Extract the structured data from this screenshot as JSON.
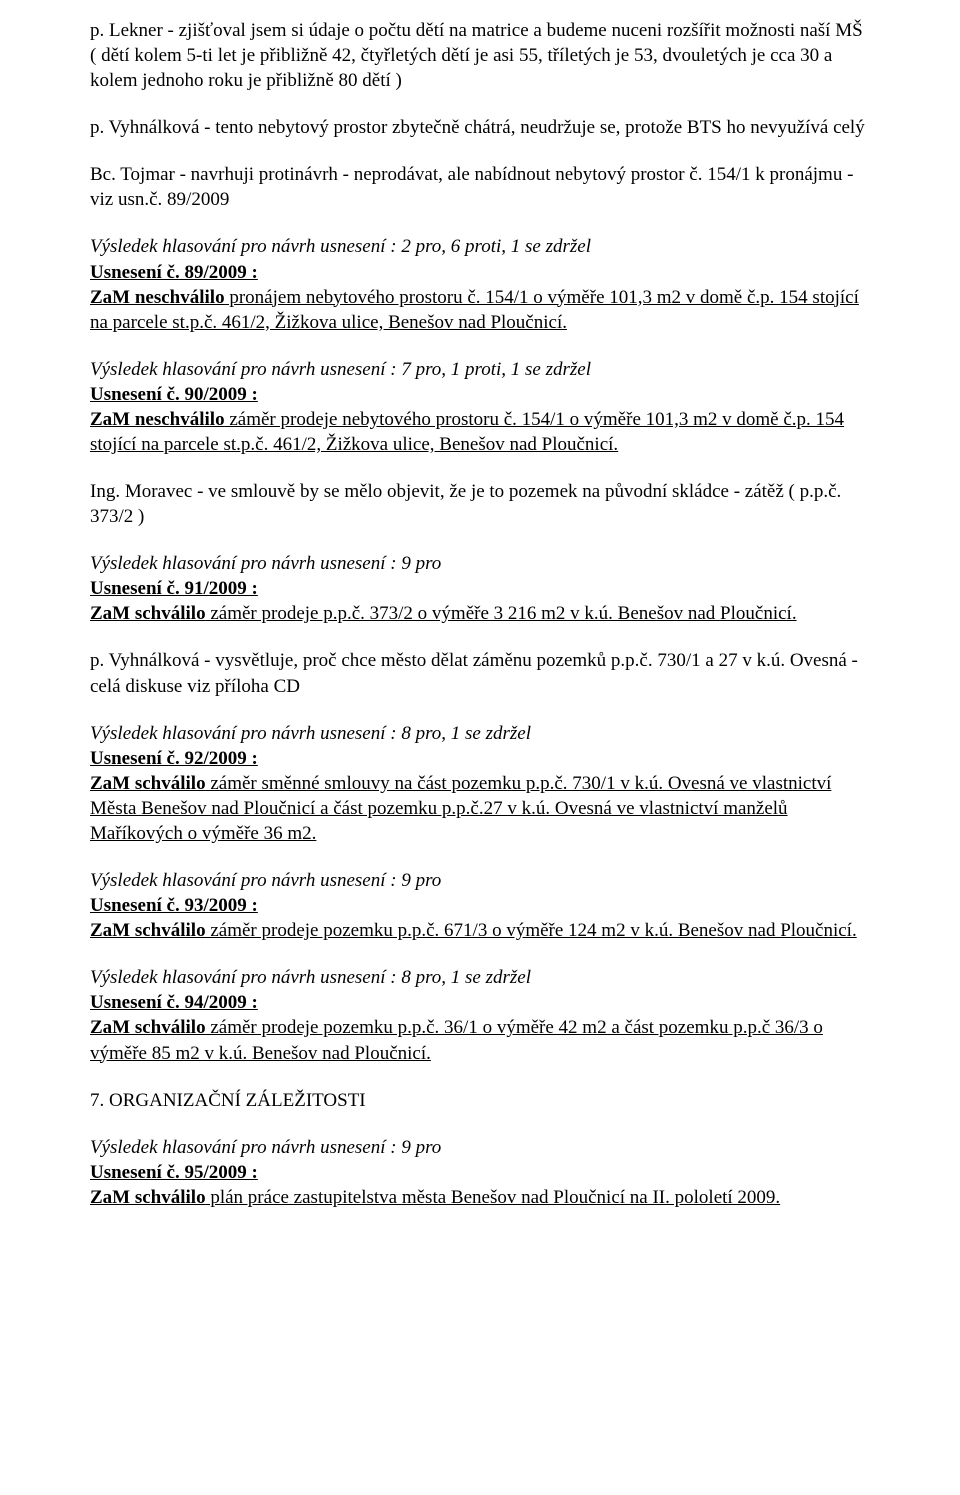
{
  "p1": "p. Lekner - zjišťoval jsem si údaje o počtu dětí na matrice a budeme nuceni rozšířit možnosti naší MŠ ( dětí kolem 5-ti let je přibližně 42, čtyřletých dětí je asi 55, tříletých je 53, dvouletých je cca 30 a kolem jednoho roku je přibližně 80 dětí )",
  "p2": "p. Vyhnálková - tento nebytový prostor zbytečně chátrá, neudržuje se, protože BTS ho nevyužívá celý",
  "p3": "Bc. Tojmar - navrhuji protinávrh - neprodávat, ale nabídnout nebytový prostor č. 154/1 k pronájmu - viz usn.č. 89/2009",
  "r89": {
    "vote": "Výsledek hlasování pro návrh usnesení : 2 pro, 6 proti, 1 se zdržel",
    "heading": "Usnesení č. 89/2009 :",
    "lead": "ZaM neschválilo",
    "rest": " pronájem nebytového prostoru č. 154/1 o výměře 101,3 m2 v domě č.p. 154 stojící na parcele st.p.č. 461/2, Žižkova ulice, Benešov nad Ploučnicí."
  },
  "r90": {
    "vote": "Výsledek hlasování pro návrh usnesení : 7 pro, 1 proti, 1 se zdržel",
    "heading": "Usnesení č. 90/2009 :",
    "lead": "ZaM neschválilo",
    "rest1": " záměr prodeje nebytového prostoru č. 154/1 o výměře 101,3 m2 v domě č.p. 154 stojící na parcele st.p.č. 461/2, Žižkova ulice, Benešov nad Ploučnicí."
  },
  "p4": "Ing. Moravec - ve smlouvě by se mělo objevit, že je to pozemek na původní skládce - zátěž ( p.p.č. 373/2 )",
  "r91": {
    "vote": "Výsledek hlasování pro návrh usnesení : 9 pro",
    "heading": "Usnesení č. 91/2009 :",
    "lead": "ZaM schválilo",
    "rest": " záměr prodeje p.p.č. 373/2 o výměře 3 216 m2 v k.ú. Benešov nad Ploučnicí."
  },
  "p5": "p. Vyhnálková - vysvětluje, proč chce město dělat záměnu pozemků p.p.č. 730/1 a 27 v k.ú. Ovesná - celá diskuse viz příloha CD",
  "r92": {
    "vote": "Výsledek hlasování pro návrh usnesení : 8 pro, 1 se zdržel",
    "heading": "Usnesení č. 92/2009 :",
    "lead": "ZaM schválilo",
    "rest": " záměr směnné smlouvy na část pozemku p.p.č. 730/1 v k.ú. Ovesná ve vlastnictví Města Benešov nad Ploučnicí a část pozemku p.p.č.27 v k.ú. Ovesná ve vlastnictví manželů Maříkových o výměře 36 m2."
  },
  "r93": {
    "vote": "Výsledek hlasování pro návrh usnesení : 9 pro",
    "heading": "Usnesení č. 93/2009 :",
    "lead": "ZaM schválilo",
    "rest": " záměr prodeje pozemku p.p.č. 671/3 o výměře 124 m2 v k.ú. Benešov nad Ploučnicí."
  },
  "r94": {
    "vote": "Výsledek hlasování pro návrh usnesení : 8 pro, 1 se zdržel",
    "heading": "Usnesení č. 94/2009 :",
    "lead": "ZaM schválilo",
    "rest": " záměr prodeje pozemku p.p.č. 36/1 o výměře 42 m2 a část pozemku p.p.č 36/3 o výměře 85 m2 v k.ú. Benešov nad Ploučnicí."
  },
  "section7": "7. ORGANIZAČNÍ ZÁLEŽITOSTI",
  "r95": {
    "vote": "Výsledek hlasování pro návrh usnesení : 9 pro",
    "heading": "Usnesení č. 95/2009 :",
    "lead": "ZaM schválilo",
    "rest": " plán práce zastupitelstva města Benešov nad Ploučnicí na II. pololetí 2009."
  }
}
